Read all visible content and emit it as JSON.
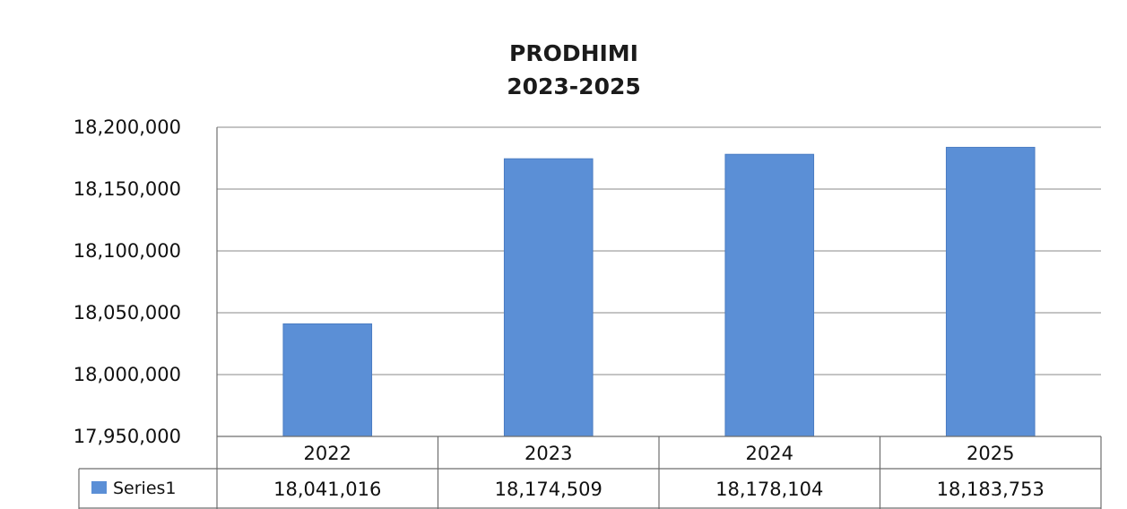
{
  "chart_data": {
    "type": "bar",
    "title": "PRODHIMI",
    "subtitle": "2023-2025",
    "categories": [
      "2022",
      "2023",
      "2024",
      "2025"
    ],
    "series": [
      {
        "name": "Series1",
        "values": [
          18041016,
          18174509,
          18178104,
          18183753
        ],
        "value_labels": [
          "18,041,016",
          "18,174,509",
          "18,178,104",
          "18,183,753"
        ],
        "color": "#5b8fd6"
      }
    ],
    "ylim": [
      17950000,
      18200000
    ],
    "y_ticks": [
      17950000,
      18000000,
      18050000,
      18100000,
      18150000,
      18200000
    ],
    "y_tick_labels": [
      "17,950,000",
      "18,000,000",
      "18,050,000",
      "18,100,000",
      "18,150,000",
      "18,200,000"
    ],
    "xlabel": "",
    "ylabel": "",
    "grid": true,
    "data_table": true,
    "legend": "data-table"
  }
}
